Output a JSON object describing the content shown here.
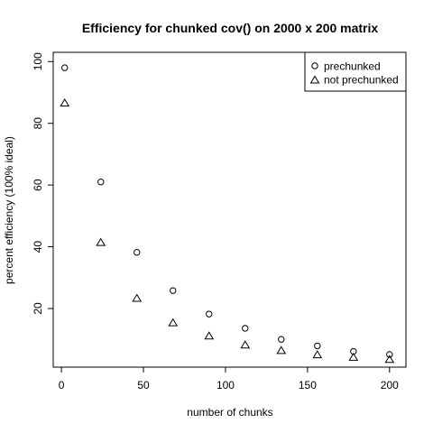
{
  "chart_data": {
    "type": "scatter",
    "title": "Efficiency for chunked cov() on 2000 x 200 matrix",
    "xlabel": "number of chunks",
    "ylabel": "percent efficiency (100% ideal)",
    "xlim": [
      -5,
      210
    ],
    "ylim": [
      1,
      103
    ],
    "xticks": [
      0,
      50,
      100,
      150,
      200
    ],
    "yticks": [
      20,
      40,
      60,
      80,
      100
    ],
    "grid": false,
    "legend_position": "top-right",
    "x": [
      2,
      24,
      46,
      68,
      90,
      112,
      134,
      156,
      178,
      200
    ],
    "series": [
      {
        "name": "prechunked",
        "marker": "circle",
        "values": [
          98,
          61,
          38.2,
          25.8,
          18.2,
          13.6,
          10,
          7.9,
          6.1,
          5.1
        ]
      },
      {
        "name": "not prechunked",
        "marker": "triangle",
        "values": [
          86.5,
          41.3,
          23.2,
          15.3,
          11,
          8.1,
          6.3,
          4.9,
          4.1,
          3.4
        ]
      }
    ]
  }
}
